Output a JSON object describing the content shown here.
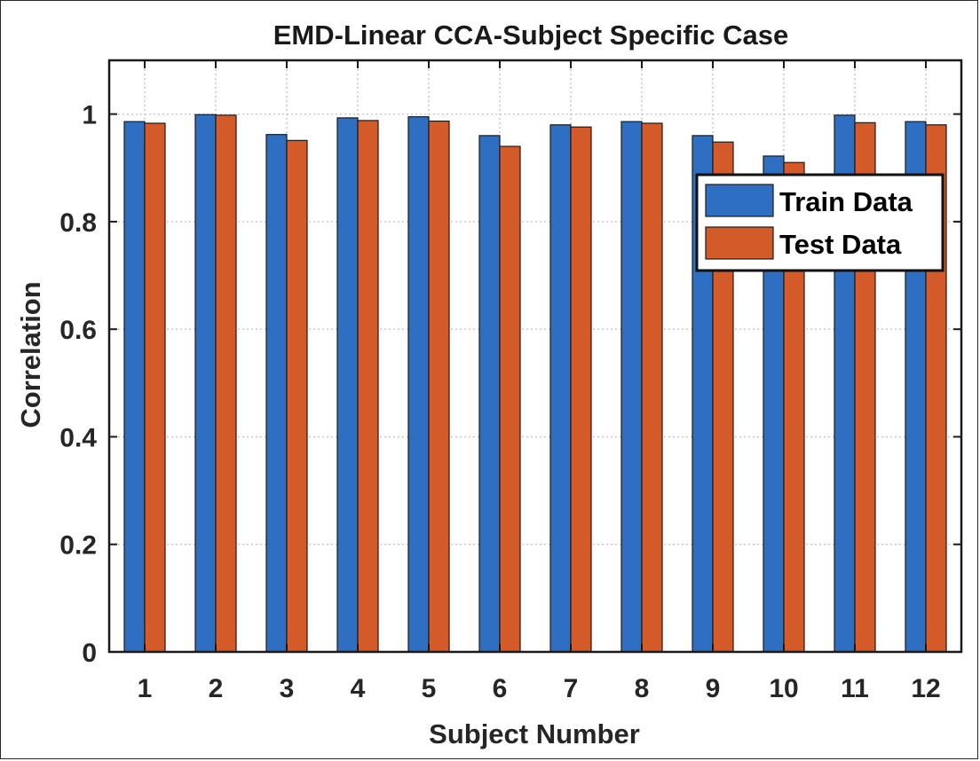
{
  "chart_data": {
    "type": "bar",
    "title": "EMD-Linear CCA-Subject Specific Case",
    "xlabel": "Subject Number",
    "ylabel": "Correlation",
    "categories": [
      "1",
      "2",
      "3",
      "4",
      "5",
      "6",
      "7",
      "8",
      "9",
      "10",
      "11",
      "12"
    ],
    "series": [
      {
        "name": "Train Data",
        "color": "#2e6fc4",
        "values": [
          0.986,
          0.999,
          0.962,
          0.993,
          0.995,
          0.96,
          0.98,
          0.986,
          0.96,
          0.922,
          0.998,
          0.986
        ]
      },
      {
        "name": "Test Data",
        "color": "#d35b29",
        "values": [
          0.983,
          0.998,
          0.951,
          0.988,
          0.987,
          0.94,
          0.976,
          0.983,
          0.948,
          0.91,
          0.984,
          0.98
        ]
      }
    ],
    "ylim": [
      0,
      1.1
    ],
    "yticks": [
      0,
      0.2,
      0.4,
      0.6,
      0.8,
      1
    ],
    "ytick_labels": [
      "0",
      "0.2",
      "0.4",
      "0.6",
      "0.8",
      "1"
    ],
    "grid": true,
    "legend_position": "top-right"
  }
}
